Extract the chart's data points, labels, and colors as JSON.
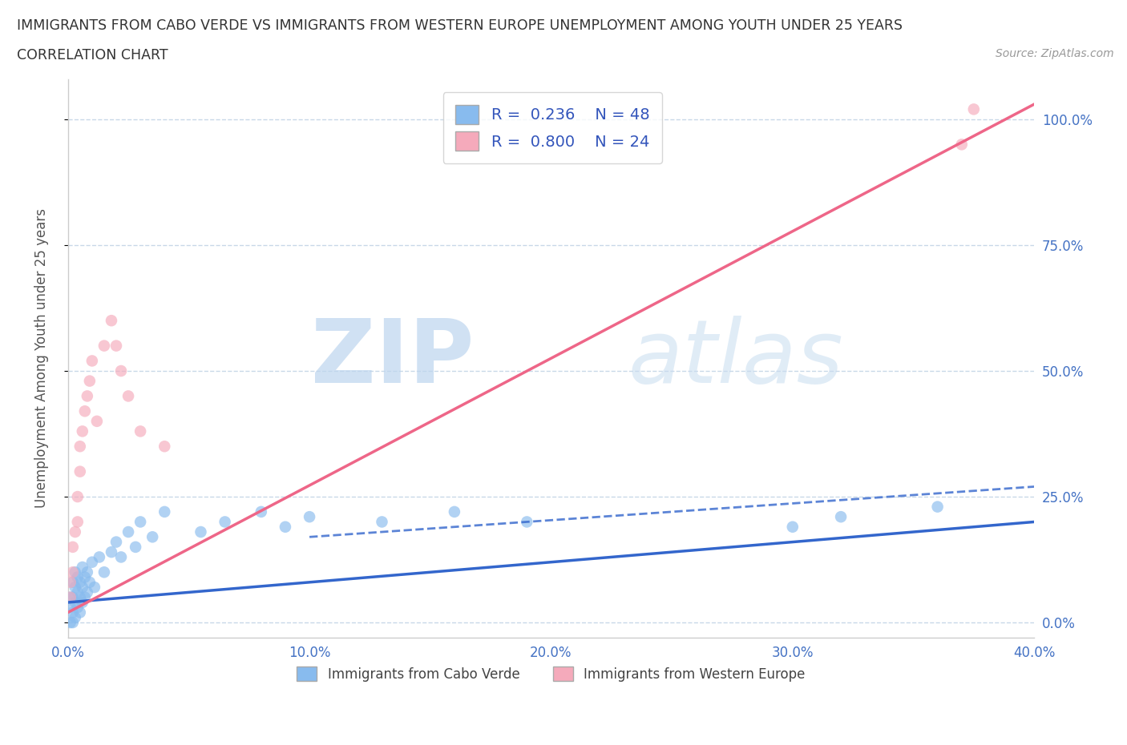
{
  "title_line1": "IMMIGRANTS FROM CABO VERDE VS IMMIGRANTS FROM WESTERN EUROPE UNEMPLOYMENT AMONG YOUTH UNDER 25 YEARS",
  "title_line2": "CORRELATION CHART",
  "source": "Source: ZipAtlas.com",
  "ylabel": "Unemployment Among Youth under 25 years",
  "xmin": 0.0,
  "xmax": 0.4,
  "ymin": -0.03,
  "ymax": 1.08,
  "yticks": [
    0.0,
    0.25,
    0.5,
    0.75,
    1.0
  ],
  "right_ytick_labels": [
    "0.0%",
    "25.0%",
    "50.0%",
    "75.0%",
    "100.0%"
  ],
  "xticks": [
    0.0,
    0.1,
    0.2,
    0.3,
    0.4
  ],
  "xtick_labels": [
    "0.0%",
    "10.0%",
    "20.0%",
    "30.0%",
    "40.0%"
  ],
  "blue_color": "#88bbee",
  "pink_color": "#f5aabb",
  "blue_line_color": "#3366cc",
  "pink_line_color": "#ee6688",
  "legend_text_color": "#3355bb",
  "watermark": "ZIPatlas",
  "watermark_color": "#ccddf0",
  "cabo_verde_label": "Immigrants from Cabo Verde",
  "western_europe_label": "Immigrants from Western Europe",
  "cabo_verde_scatter_x": [
    0.001,
    0.001,
    0.001,
    0.002,
    0.002,
    0.002,
    0.002,
    0.003,
    0.003,
    0.003,
    0.003,
    0.004,
    0.004,
    0.004,
    0.005,
    0.005,
    0.005,
    0.006,
    0.006,
    0.006,
    0.007,
    0.007,
    0.008,
    0.008,
    0.009,
    0.01,
    0.011,
    0.013,
    0.015,
    0.018,
    0.02,
    0.022,
    0.025,
    0.028,
    0.03,
    0.035,
    0.04,
    0.055,
    0.065,
    0.08,
    0.09,
    0.1,
    0.13,
    0.16,
    0.19,
    0.3,
    0.32,
    0.36
  ],
  "cabo_verde_scatter_y": [
    0.0,
    0.03,
    0.05,
    0.0,
    0.02,
    0.05,
    0.08,
    0.01,
    0.04,
    0.07,
    0.1,
    0.03,
    0.06,
    0.09,
    0.02,
    0.05,
    0.08,
    0.04,
    0.07,
    0.11,
    0.05,
    0.09,
    0.06,
    0.1,
    0.08,
    0.12,
    0.07,
    0.13,
    0.1,
    0.14,
    0.16,
    0.13,
    0.18,
    0.15,
    0.2,
    0.17,
    0.22,
    0.18,
    0.2,
    0.22,
    0.19,
    0.21,
    0.2,
    0.22,
    0.2,
    0.19,
    0.21,
    0.23
  ],
  "western_europe_scatter_x": [
    0.001,
    0.001,
    0.002,
    0.002,
    0.003,
    0.004,
    0.004,
    0.005,
    0.005,
    0.006,
    0.007,
    0.008,
    0.009,
    0.01,
    0.012,
    0.015,
    0.018,
    0.02,
    0.022,
    0.025,
    0.03,
    0.04,
    0.37,
    0.375
  ],
  "western_europe_scatter_y": [
    0.05,
    0.08,
    0.1,
    0.15,
    0.18,
    0.2,
    0.25,
    0.3,
    0.35,
    0.38,
    0.42,
    0.45,
    0.48,
    0.52,
    0.4,
    0.55,
    0.6,
    0.55,
    0.5,
    0.45,
    0.38,
    0.35,
    0.95,
    1.02
  ],
  "cabo_verde_regline_x": [
    0.0,
    0.4
  ],
  "cabo_verde_regline_y": [
    0.04,
    0.2
  ],
  "western_europe_regline_x": [
    0.0,
    0.4
  ],
  "western_europe_regline_y": [
    0.02,
    1.03
  ],
  "background_color": "#ffffff",
  "grid_color": "#c8d8e8"
}
